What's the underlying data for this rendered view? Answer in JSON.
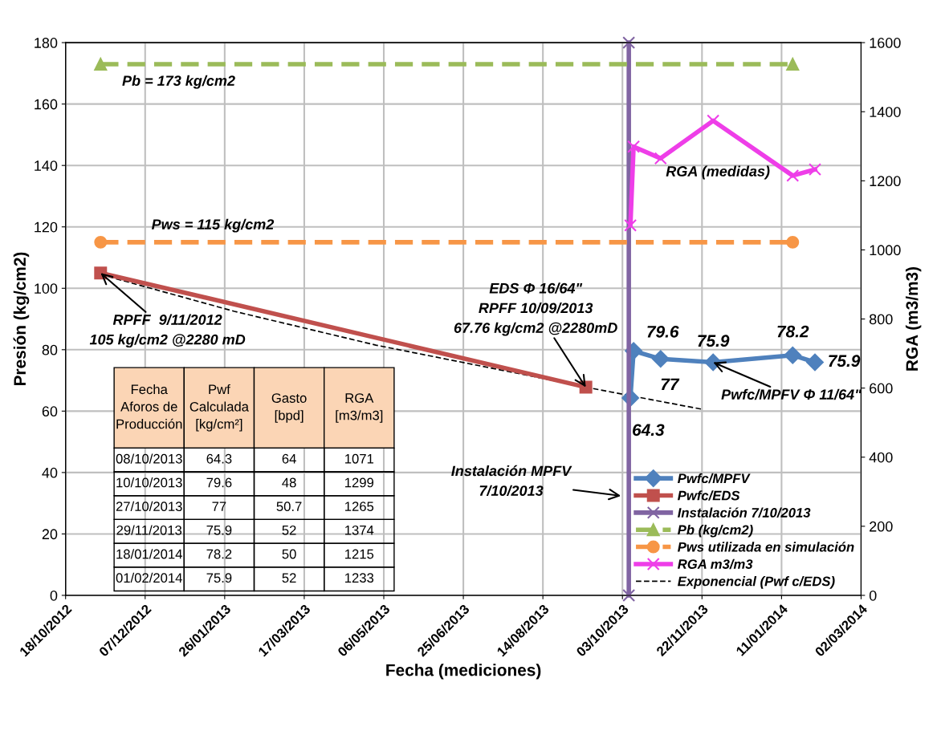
{
  "chart_data": {
    "type": "line",
    "xlabel": "Fecha (mediciones)",
    "ylabel": "Presión (kg/cm2)",
    "y2label": "RGA (m3/m3)",
    "x": [
      "2013-10-08",
      "2013-10-10",
      "2013-10-27",
      "2013-11-29",
      "2014-01-18",
      "2014-02-01"
    ],
    "series": [
      {
        "name": "Pwfc/MPFV",
        "color": "#4f81bd",
        "marker": "diamond",
        "values": [
          64.3,
          79.6,
          77,
          75.9,
          78.2,
          75.9
        ],
        "value_labels": [
          "64.3",
          "79.6",
          "77",
          "75.9",
          "78.2",
          "75.9"
        ]
      },
      {
        "name": "Pwfc/EDS",
        "color": "#c0504d",
        "marker": "square",
        "x": [
          "2012-11-09",
          "2013-09-10"
        ],
        "values": [
          105,
          67.8
        ]
      },
      {
        "name": "Instalación 7/10/2013",
        "color": "#8064a2",
        "marker": "cross",
        "x": [
          "2013-10-07",
          "2013-10-07"
        ],
        "values": [
          0,
          180
        ]
      },
      {
        "name": "Pb (kg/cm2)",
        "color": "#9bbb59",
        "marker": "triangle",
        "line_style": "dashed",
        "x": [
          "2012-11-09",
          "2014-01-18"
        ],
        "values": [
          173,
          173
        ]
      },
      {
        "name": "Pws utilizada en simulación",
        "color": "#f79646",
        "marker": "circle",
        "line_style": "dashed",
        "x": [
          "2012-11-09",
          "2014-01-18"
        ],
        "values": [
          115,
          115
        ]
      },
      {
        "name": "RGA m3/m3",
        "color": "#ee3ee8",
        "marker": "cross",
        "axis": "y2",
        "values": [
          1071,
          1299,
          1265,
          1374,
          1215,
          1233
        ]
      },
      {
        "name": "Exponencial (Pwf c/EDS)",
        "color": "#000000",
        "marker": "none",
        "line_style": "dashed",
        "x": [
          "2012-11-09",
          "2013-02-01",
          "2013-05-01",
          "2013-08-01",
          "2013-09-10",
          "2013-11-22"
        ],
        "values": [
          104.5,
          92.5,
          81.5,
          72,
          67.8,
          60.6
        ]
      }
    ],
    "xlim": [
      "2012-10-18",
      "2014-03-02"
    ],
    "xticks": [
      {
        "value": "2012-10-18",
        "label": "18/10/2012"
      },
      {
        "value": "2012-12-07",
        "label": "07/12/2012"
      },
      {
        "value": "2013-01-26",
        "label": "26/01/2013"
      },
      {
        "value": "2013-03-17",
        "label": "17/03/2013"
      },
      {
        "value": "2013-05-06",
        "label": "06/05/2013"
      },
      {
        "value": "2013-06-25",
        "label": "25/06/2013"
      },
      {
        "value": "2013-08-14",
        "label": "14/08/2013"
      },
      {
        "value": "2013-10-03",
        "label": "03/10/2013"
      },
      {
        "value": "2013-11-22",
        "label": "22/11/2013"
      },
      {
        "value": "2014-01-11",
        "label": "11/01/2014"
      },
      {
        "value": "2014-03-02",
        "label": "02/03/2014"
      }
    ],
    "ylim": [
      0,
      180
    ],
    "yticks": [
      0,
      20,
      40,
      60,
      80,
      100,
      120,
      140,
      160,
      180
    ],
    "y2lim": [
      0,
      1600
    ],
    "y2ticks": [
      0,
      200,
      400,
      600,
      800,
      1000,
      1200,
      1400,
      1600
    ],
    "grid": true,
    "legend": "bottom right",
    "annotations": [
      {
        "text": "Pb = 173 kg/cm2",
        "x": "2012-11-09",
        "y": 173
      },
      "Pws = 115 kg/cm2",
      "RGA (medidas)",
      {
        "text": "Pwfc/MPFV Φ 11/64\"",
        "x": "2013-11-29",
        "y": 75.9
      },
      {
        "text": "RPFF  9/11/2012\n105 kg/cm2 @2280 mD",
        "x": "2012-11-09",
        "y": 105
      },
      {
        "text": "EDS Φ 16/64\"\nRPFF 10/09/2013\n67.76 kg/cm2 @2280mD",
        "x": "2013-09-10",
        "y": 67.76
      },
      "Instalación MPFV\n7/10/2013",
      "Fecha\nAforos de\nProducción",
      "Pwf\nCalculada\n[kg/cm²]",
      "Gasto\n[bpd]",
      "RGA\n[m3/m3]",
      "08/10/2013",
      "64.3",
      "64",
      "1071",
      "10/10/2013",
      "79.6",
      "48",
      "1299",
      "27/10/2013",
      "77",
      "50.7",
      "1265",
      "29/11/2013",
      "75.9",
      "52",
      "1374",
      "18/01/2014",
      "78.2",
      "50",
      "1215",
      "01/02/2014",
      "75.9",
      "52",
      "1233"
    ]
  }
}
